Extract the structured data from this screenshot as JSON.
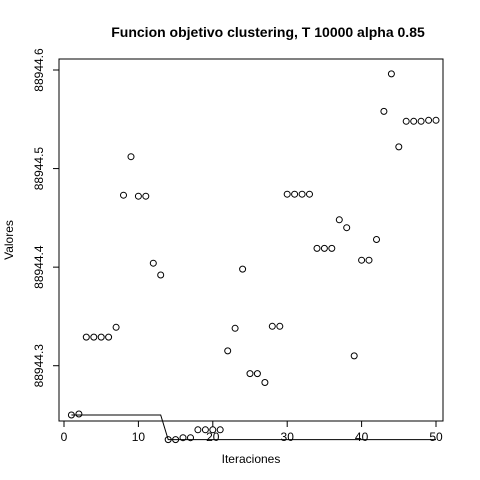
{
  "chart_data": {
    "type": "scatter",
    "title": "Funcion objetivo clustering, T 10000 alpha 0.85",
    "xlabel": "Iteraciones",
    "ylabel": "Valores",
    "xlim": [
      0,
      50
    ],
    "ylim": [
      88944.25,
      88944.6
    ],
    "x_ticks": [
      0,
      10,
      20,
      30,
      40,
      50
    ],
    "x_tick_labels": [
      "0",
      "10",
      "20",
      "30",
      "40",
      "50"
    ],
    "y_ticks": [
      88944.3,
      88944.4,
      88944.5,
      88944.6
    ],
    "y_tick_labels": [
      "88944.3",
      "88944.4",
      "88944.5",
      "88944.6"
    ],
    "grid": false,
    "series": [
      {
        "style": "points",
        "x": [
          1,
          2,
          3,
          4,
          5,
          6,
          7,
          8,
          9,
          10,
          11,
          12,
          13,
          14,
          15,
          16,
          17,
          18,
          19,
          20,
          21,
          22,
          23,
          24,
          25,
          26,
          27,
          28,
          29,
          30,
          31,
          32,
          33,
          34,
          35,
          36,
          37,
          38,
          39,
          40,
          41,
          42,
          43,
          44,
          45,
          46,
          47,
          48,
          49,
          50
        ],
        "y": [
          88944.25,
          88944.251,
          88944.329,
          88944.329,
          88944.329,
          88944.329,
          88944.339,
          88944.473,
          88944.512,
          88944.472,
          88944.472,
          88944.404,
          88944.392,
          88944.225,
          88944.225,
          88944.227,
          88944.227,
          88944.235,
          88944.235,
          88944.235,
          88944.235,
          88944.315,
          88944.338,
          88944.398,
          88944.292,
          88944.292,
          88944.283,
          88944.34,
          88944.34,
          88944.474,
          88944.474,
          88944.474,
          88944.474,
          88944.419,
          88944.419,
          88944.419,
          88944.448,
          88944.44,
          88944.31,
          88944.407,
          88944.407,
          88944.428,
          88944.558,
          88944.596,
          88944.522,
          88944.548,
          88944.548,
          88944.548,
          88944.549,
          88944.549
        ]
      },
      {
        "style": "line",
        "x": [
          1,
          2,
          3,
          4,
          5,
          6,
          7,
          8,
          9,
          10,
          11,
          12,
          13,
          14,
          15,
          16,
          17,
          18,
          19,
          20,
          21,
          22,
          23,
          24,
          25,
          26,
          27,
          28,
          29,
          30,
          31,
          32,
          33,
          34,
          35,
          36,
          37,
          38,
          39,
          40,
          41,
          42,
          43,
          44,
          45,
          46,
          47,
          48,
          49,
          50
        ],
        "y": [
          88944.25,
          88944.25,
          88944.25,
          88944.25,
          88944.25,
          88944.25,
          88944.25,
          88944.25,
          88944.25,
          88944.25,
          88944.25,
          88944.25,
          88944.25,
          88944.225,
          88944.225,
          88944.225,
          88944.225,
          88944.225,
          88944.225,
          88944.225,
          88944.225,
          88944.225,
          88944.225,
          88944.225,
          88944.225,
          88944.225,
          88944.225,
          88944.225,
          88944.225,
          88944.225,
          88944.225,
          88944.225,
          88944.225,
          88944.225,
          88944.225,
          88944.225,
          88944.225,
          88944.225,
          88944.225,
          88944.225,
          88944.225,
          88944.225,
          88944.225,
          88944.225,
          88944.225,
          88944.225,
          88944.225,
          88944.225,
          88944.225,
          88944.225
        ]
      }
    ]
  }
}
